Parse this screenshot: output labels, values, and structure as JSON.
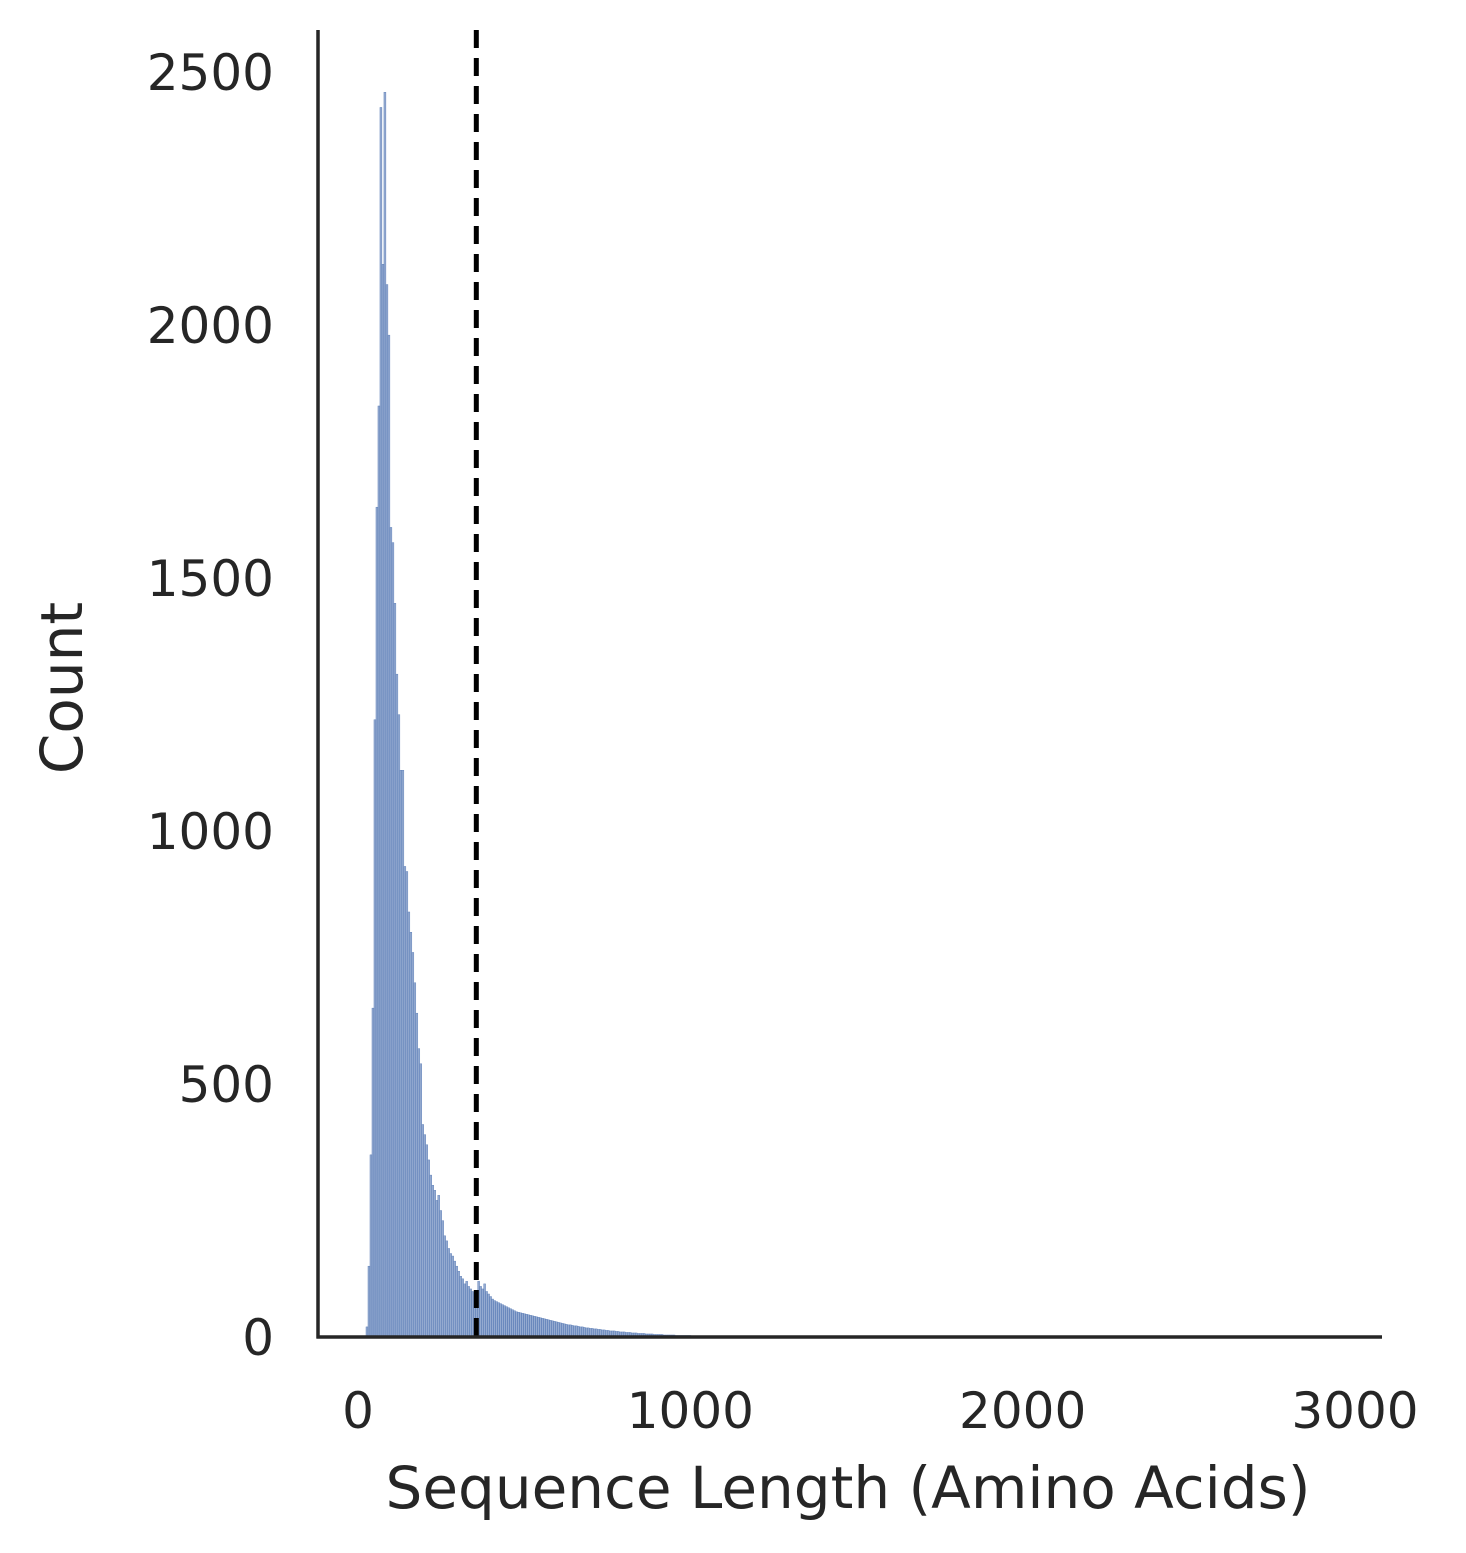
{
  "chart_data": {
    "type": "histogram",
    "xlabel": "Sequence Length (Amino Acids)",
    "ylabel": "Count",
    "xlim": [
      -120,
      3080
    ],
    "ylim": [
      0,
      2580
    ],
    "xticks": [
      0,
      1000,
      2000,
      3000
    ],
    "xtick_labels": [
      "0",
      "1000",
      "2000",
      "3000"
    ],
    "yticks": [
      0,
      500,
      1000,
      1500,
      2000,
      2500
    ],
    "ytick_labels": [
      "0",
      "500",
      "1000",
      "1500",
      "2000",
      "2500"
    ],
    "bin_width": 6,
    "bins": [
      [
        24,
        20
      ],
      [
        30,
        140
      ],
      [
        36,
        360
      ],
      [
        42,
        650
      ],
      [
        48,
        1220
      ],
      [
        54,
        1640
      ],
      [
        60,
        1840
      ],
      [
        66,
        2430
      ],
      [
        72,
        2120
      ],
      [
        78,
        2460
      ],
      [
        84,
        2080
      ],
      [
        90,
        1980
      ],
      [
        96,
        1600
      ],
      [
        102,
        1570
      ],
      [
        108,
        1450
      ],
      [
        114,
        1310
      ],
      [
        120,
        1230
      ],
      [
        126,
        1120
      ],
      [
        132,
        1120
      ],
      [
        138,
        930
      ],
      [
        144,
        920
      ],
      [
        150,
        840
      ],
      [
        156,
        800
      ],
      [
        162,
        760
      ],
      [
        168,
        700
      ],
      [
        174,
        640
      ],
      [
        180,
        570
      ],
      [
        186,
        540
      ],
      [
        192,
        420
      ],
      [
        198,
        400
      ],
      [
        204,
        380
      ],
      [
        210,
        350
      ],
      [
        216,
        320
      ],
      [
        222,
        300
      ],
      [
        228,
        290
      ],
      [
        234,
        270
      ],
      [
        240,
        280
      ],
      [
        246,
        250
      ],
      [
        252,
        230
      ],
      [
        258,
        200
      ],
      [
        264,
        190
      ],
      [
        270,
        175
      ],
      [
        276,
        165
      ],
      [
        282,
        160
      ],
      [
        288,
        150
      ],
      [
        294,
        140
      ],
      [
        300,
        130
      ],
      [
        306,
        120
      ],
      [
        312,
        115
      ],
      [
        318,
        105
      ],
      [
        324,
        110
      ],
      [
        330,
        100
      ],
      [
        336,
        95
      ],
      [
        342,
        90
      ],
      [
        348,
        88
      ],
      [
        354,
        85
      ],
      [
        360,
        110
      ],
      [
        366,
        100
      ],
      [
        372,
        95
      ],
      [
        378,
        105
      ],
      [
        384,
        90
      ],
      [
        390,
        85
      ],
      [
        396,
        80
      ],
      [
        402,
        75
      ],
      [
        408,
        72
      ],
      [
        414,
        70
      ],
      [
        420,
        68
      ],
      [
        426,
        66
      ],
      [
        432,
        64
      ],
      [
        438,
        62
      ],
      [
        444,
        60
      ],
      [
        450,
        58
      ],
      [
        456,
        56
      ],
      [
        462,
        54
      ],
      [
        468,
        52
      ],
      [
        474,
        50
      ],
      [
        480,
        49
      ],
      [
        486,
        48
      ],
      [
        492,
        47
      ],
      [
        498,
        46
      ],
      [
        504,
        45
      ],
      [
        510,
        44
      ],
      [
        516,
        43
      ],
      [
        522,
        42
      ],
      [
        528,
        41
      ],
      [
        534,
        40
      ],
      [
        540,
        39
      ],
      [
        546,
        38
      ],
      [
        552,
        37
      ],
      [
        558,
        36
      ],
      [
        564,
        35
      ],
      [
        570,
        34
      ],
      [
        576,
        33
      ],
      [
        582,
        32
      ],
      [
        588,
        31
      ],
      [
        594,
        30
      ],
      [
        600,
        29
      ],
      [
        606,
        28
      ],
      [
        612,
        27
      ],
      [
        618,
        26
      ],
      [
        624,
        25
      ],
      [
        630,
        24
      ],
      [
        636,
        24
      ],
      [
        642,
        23
      ],
      [
        648,
        22
      ],
      [
        654,
        22
      ],
      [
        660,
        21
      ],
      [
        666,
        20
      ],
      [
        672,
        20
      ],
      [
        678,
        19
      ],
      [
        684,
        18
      ],
      [
        690,
        18
      ],
      [
        696,
        17
      ],
      [
        702,
        17
      ],
      [
        708,
        16
      ],
      [
        714,
        16
      ],
      [
        720,
        15
      ],
      [
        726,
        15
      ],
      [
        732,
        14
      ],
      [
        738,
        14
      ],
      [
        744,
        13
      ],
      [
        750,
        13
      ],
      [
        756,
        12
      ],
      [
        762,
        12
      ],
      [
        768,
        12
      ],
      [
        774,
        11
      ],
      [
        780,
        11
      ],
      [
        786,
        10
      ],
      [
        792,
        10
      ],
      [
        798,
        10
      ],
      [
        804,
        9
      ],
      [
        810,
        9
      ],
      [
        816,
        9
      ],
      [
        822,
        8
      ],
      [
        828,
        8
      ],
      [
        834,
        8
      ],
      [
        840,
        7
      ],
      [
        846,
        7
      ],
      [
        852,
        7
      ],
      [
        858,
        7
      ],
      [
        864,
        6
      ],
      [
        870,
        6
      ],
      [
        876,
        6
      ],
      [
        882,
        6
      ],
      [
        888,
        5
      ],
      [
        894,
        5
      ],
      [
        900,
        5
      ],
      [
        906,
        5
      ],
      [
        912,
        5
      ],
      [
        918,
        4
      ],
      [
        924,
        4
      ],
      [
        930,
        4
      ],
      [
        936,
        4
      ],
      [
        942,
        4
      ],
      [
        948,
        4
      ],
      [
        954,
        3
      ],
      [
        960,
        3
      ],
      [
        966,
        3
      ],
      [
        972,
        3
      ],
      [
        978,
        3
      ],
      [
        984,
        3
      ],
      [
        990,
        3
      ],
      [
        996,
        3
      ],
      [
        1002,
        2
      ],
      [
        1008,
        2
      ],
      [
        1014,
        2
      ],
      [
        1020,
        2
      ],
      [
        1026,
        2
      ],
      [
        1032,
        2
      ],
      [
        1038,
        2
      ],
      [
        1044,
        2
      ],
      [
        1050,
        2
      ],
      [
        1056,
        2
      ],
      [
        1062,
        2
      ],
      [
        1068,
        2
      ],
      [
        1074,
        1
      ],
      [
        1080,
        1
      ],
      [
        1086,
        1
      ],
      [
        1092,
        1
      ],
      [
        1098,
        1
      ],
      [
        1104,
        1
      ],
      [
        1110,
        1
      ],
      [
        1116,
        1
      ],
      [
        1122,
        1
      ],
      [
        1128,
        1
      ],
      [
        1134,
        1
      ],
      [
        1140,
        1
      ],
      [
        1146,
        1
      ],
      [
        1152,
        1
      ],
      [
        1158,
        1
      ],
      [
        1164,
        1
      ],
      [
        1170,
        1
      ],
      [
        1176,
        1
      ],
      [
        1182,
        1
      ],
      [
        1188,
        1
      ],
      [
        1194,
        1
      ],
      [
        1200,
        1
      ],
      [
        1212,
        1
      ],
      [
        1224,
        1
      ],
      [
        1236,
        1
      ],
      [
        1248,
        1
      ],
      [
        1260,
        1
      ],
      [
        1272,
        1
      ],
      [
        1284,
        1
      ],
      [
        1296,
        1
      ],
      [
        1308,
        1
      ],
      [
        1320,
        1
      ],
      [
        1332,
        1
      ],
      [
        1344,
        1
      ],
      [
        1356,
        1
      ],
      [
        1368,
        1
      ],
      [
        1380,
        1
      ],
      [
        1392,
        1
      ],
      [
        1776,
        1
      ]
    ],
    "reference_line": {
      "x": 356,
      "style": "dashed",
      "color": "#000000"
    },
    "bar_color": "#4c72b0",
    "bar_opacity": 0.6,
    "grid": false
  }
}
